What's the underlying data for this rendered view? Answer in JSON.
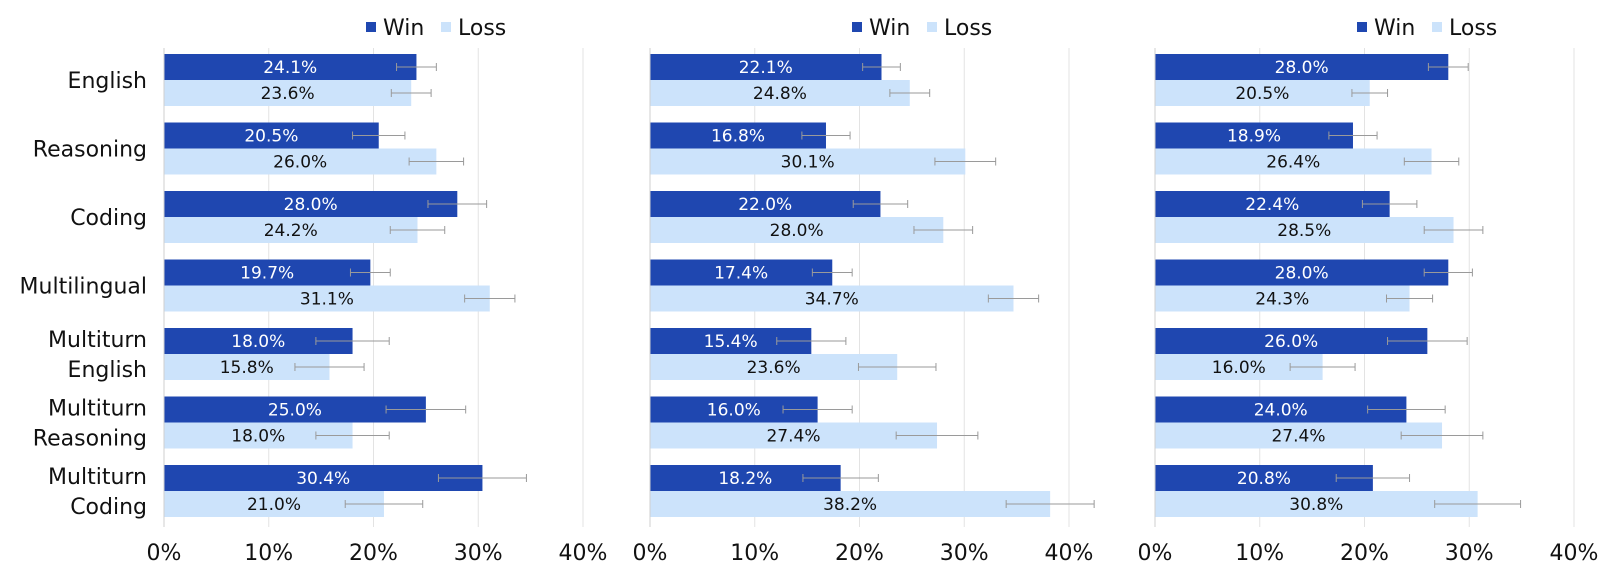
{
  "chart_data": [
    {
      "type": "bar",
      "orientation": "horizontal",
      "categories": [
        "English",
        "Reasoning",
        "Coding",
        "Multilingual",
        "Multiturn English",
        "Multiturn Reasoning",
        "Multiturn Coding"
      ],
      "category_lines": [
        [
          "English"
        ],
        [
          "Reasoning"
        ],
        [
          "Coding"
        ],
        [
          "Multilingual"
        ],
        [
          "Multiturn",
          "English"
        ],
        [
          "Multiturn",
          "Reasoning"
        ],
        [
          "Multiturn",
          "Coding"
        ]
      ],
      "series": [
        {
          "name": "Win",
          "color": "#1f47b0",
          "label_color": "#ffffff",
          "values": [
            24.1,
            20.5,
            28.0,
            19.7,
            18.0,
            25.0,
            30.4
          ],
          "errors": [
            1.9,
            2.5,
            2.8,
            1.9,
            3.5,
            3.8,
            4.2
          ],
          "labels": [
            "24.1%",
            "20.5%",
            "28.0%",
            "19.7%",
            "18.0%",
            "25.0%",
            "30.4%"
          ]
        },
        {
          "name": "Loss",
          "color": "#cce3fb",
          "label_color": "#111111",
          "values": [
            23.6,
            26.0,
            24.2,
            31.1,
            15.8,
            18.0,
            21.0
          ],
          "errors": [
            1.9,
            2.6,
            2.6,
            2.4,
            3.3,
            3.5,
            3.7
          ],
          "labels": [
            "23.6%",
            "26.0%",
            "24.2%",
            "31.1%",
            "15.8%",
            "18.0%",
            "21.0%"
          ]
        }
      ],
      "xlim": [
        0,
        40
      ],
      "xticks": [
        "0%",
        "10%",
        "20%",
        "30%",
        "40%"
      ],
      "grid": true,
      "legend_position": "top-right"
    },
    {
      "type": "bar",
      "orientation": "horizontal",
      "categories": [
        "English",
        "Reasoning",
        "Coding",
        "Multilingual",
        "Multiturn English",
        "Multiturn Reasoning",
        "Multiturn Coding"
      ],
      "category_lines": [],
      "series": [
        {
          "name": "Win",
          "color": "#1f47b0",
          "label_color": "#ffffff",
          "values": [
            22.1,
            16.8,
            22.0,
            17.4,
            15.4,
            16.0,
            18.2
          ],
          "errors": [
            1.8,
            2.3,
            2.6,
            1.9,
            3.3,
            3.3,
            3.6
          ],
          "labels": [
            "22.1%",
            "16.8%",
            "22.0%",
            "17.4%",
            "15.4%",
            "16.0%",
            "18.2%"
          ]
        },
        {
          "name": "Loss",
          "color": "#cce3fb",
          "label_color": "#111111",
          "values": [
            24.8,
            30.1,
            28.0,
            34.7,
            23.6,
            27.4,
            38.2
          ],
          "errors": [
            1.9,
            2.9,
            2.8,
            2.4,
            3.7,
            3.9,
            4.2
          ],
          "labels": [
            "24.8%",
            "30.1%",
            "28.0%",
            "34.7%",
            "23.6%",
            "27.4%",
            "38.2%"
          ]
        }
      ],
      "xlim": [
        0,
        40
      ],
      "xticks": [
        "0%",
        "10%",
        "20%",
        "30%",
        "40%"
      ],
      "grid": true,
      "legend_position": "top-right"
    },
    {
      "type": "bar",
      "orientation": "horizontal",
      "categories": [
        "English",
        "Reasoning",
        "Coding",
        "Multilingual",
        "Multiturn English",
        "Multiturn Reasoning",
        "Multiturn Coding"
      ],
      "category_lines": [],
      "series": [
        {
          "name": "Win",
          "color": "#1f47b0",
          "label_color": "#ffffff",
          "values": [
            28.0,
            18.9,
            22.4,
            28.0,
            26.0,
            24.0,
            20.8
          ],
          "errors": [
            1.9,
            2.3,
            2.6,
            2.3,
            3.8,
            3.7,
            3.5
          ],
          "labels": [
            "28.0%",
            "18.9%",
            "22.4%",
            "28.0%",
            "26.0%",
            "24.0%",
            "20.8%"
          ]
        },
        {
          "name": "Loss",
          "color": "#cce3fb",
          "label_color": "#111111",
          "values": [
            20.5,
            26.4,
            28.5,
            24.3,
            16.0,
            27.4,
            30.8
          ],
          "errors": [
            1.7,
            2.6,
            2.8,
            2.2,
            3.1,
            3.9,
            4.1
          ],
          "labels": [
            "20.5%",
            "26.4%",
            "28.5%",
            "24.3%",
            "16.0%",
            "27.4%",
            "30.8%"
          ]
        }
      ],
      "xlim": [
        0,
        40
      ],
      "xticks": [
        "0%",
        "10%",
        "20%",
        "30%",
        "40%"
      ],
      "grid": true,
      "legend_position": "top-right"
    }
  ]
}
